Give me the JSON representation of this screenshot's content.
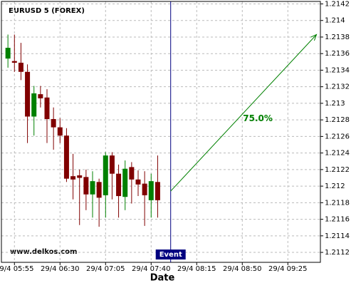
{
  "chart_data": {
    "type": "candlestick",
    "title": "EURUSD 5 (FOREX)",
    "x_label": "Date",
    "watermark": "www.delkos.com",
    "x": [
      "29/4 05:50",
      "29/4 05:55",
      "29/4 06:00",
      "29/4 06:05",
      "29/4 06:10",
      "29/4 06:15",
      "29/4 06:20",
      "29/4 06:25",
      "29/4 06:30",
      "29/4 06:35",
      "29/4 06:40",
      "29/4 06:45",
      "29/4 06:50",
      "29/4 06:55",
      "29/4 07:00",
      "29/4 07:05",
      "29/4 07:10",
      "29/4 07:15",
      "29/4 07:20",
      "29/4 07:25",
      "29/4 07:30",
      "29/4 07:35",
      "29/4 07:40",
      "29/4 07:45"
    ],
    "open": [
      1.21354,
      1.21351,
      1.21349,
      1.21338,
      1.21284,
      1.21311,
      1.21307,
      1.21281,
      1.21271,
      1.21261,
      1.21212,
      1.21213,
      1.21211,
      1.2119,
      1.21205,
      1.21189,
      1.21237,
      1.21215,
      1.21187,
      1.21223,
      1.21208,
      1.21203,
      1.21183,
      1.21205
    ],
    "high": [
      1.21383,
      1.21383,
      1.21373,
      1.21347,
      1.21321,
      1.21321,
      1.21317,
      1.21295,
      1.21282,
      1.2127,
      1.21239,
      1.2122,
      1.2122,
      1.21218,
      1.21209,
      1.21241,
      1.21241,
      1.21226,
      1.21231,
      1.21229,
      1.21219,
      1.21218,
      1.21215,
      1.21237
    ],
    "low": [
      1.21343,
      1.21338,
      1.21328,
      1.21252,
      1.21261,
      1.21295,
      1.21252,
      1.21244,
      1.21252,
      1.21205,
      1.21184,
      1.21153,
      1.21171,
      1.21162,
      1.21151,
      1.21162,
      1.21184,
      1.21162,
      1.21171,
      1.21179,
      1.21188,
      1.21152,
      1.21162,
      1.21162
    ],
    "close": [
      1.21367,
      1.21349,
      1.21338,
      1.21284,
      1.21312,
      1.21306,
      1.21281,
      1.21271,
      1.21261,
      1.21209,
      1.21208,
      1.2121,
      1.2119,
      1.21206,
      1.21186,
      1.21237,
      1.21215,
      1.21188,
      1.21221,
      1.21208,
      1.21202,
      1.21189,
      1.21206,
      1.21183
    ],
    "up_color": "#008000",
    "down_color": "#800000",
    "xlim": [
      "29/4 05:45",
      "29/4 09:50"
    ],
    "xticks": [
      "29/4 05:55",
      "29/4 06:30",
      "29/4 07:05",
      "29/4 07:40",
      "29/4 08:15",
      "29/4 08:50",
      "29/4 09:25"
    ],
    "ylim": [
      1.21108,
      1.21423
    ],
    "yticks": [
      1.2112,
      1.2114,
      1.2116,
      1.2118,
      1.212,
      1.2122,
      1.2124,
      1.2126,
      1.2128,
      1.213,
      1.2132,
      1.2134,
      1.2136,
      1.2138,
      1.214,
      1.2142
    ],
    "grid": true,
    "event": {
      "x": "29/4 07:55",
      "label": "Event",
      "color": "#000080"
    },
    "arrow": {
      "x0": "29/4 07:55",
      "y0": 1.21194,
      "x1": "29/4 09:47",
      "y1": 1.21383,
      "color": "#008000",
      "label": "75.0%"
    }
  }
}
